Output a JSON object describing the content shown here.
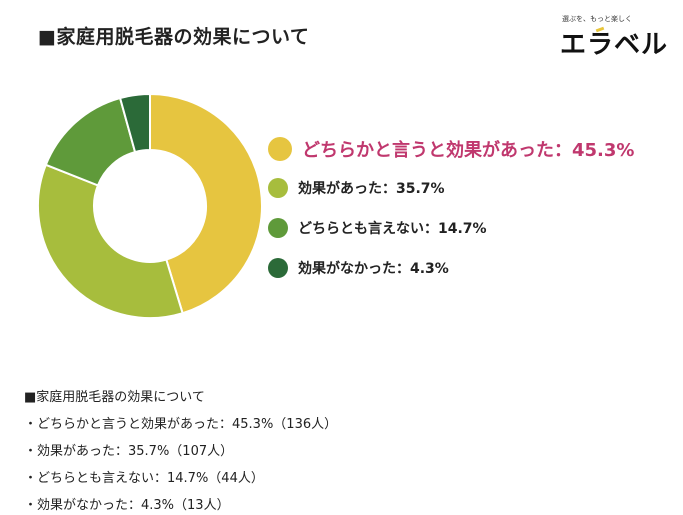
{
  "figure": {
    "title": "■家庭用脱毛器の効果について",
    "logo": {
      "tagline": "選ぶを、もっと楽しく",
      "wordmark": "エラベル"
    }
  },
  "chart_data": {
    "type": "pie",
    "variant": "donut",
    "categories": [
      "どちらかと言うと効果があった",
      "効果があった",
      "どちらとも言えない",
      "効果がなかった"
    ],
    "values": [
      45.3,
      35.7,
      14.7,
      4.3
    ],
    "counts": [
      136,
      107,
      44,
      13
    ],
    "colors": [
      "#e6c540",
      "#a7bd3d",
      "#5f9a3a",
      "#2b6a38"
    ],
    "highlight_color": "#c0386e",
    "legend": [
      "どちらかと言うと効果があった：45.3%",
      "効果があった：35.7%",
      "どちらとも言えない：14.7%",
      "効果がなかった：4.3%"
    ],
    "legend_position": "right",
    "title": "■家庭用脱毛器の効果について"
  },
  "summary": {
    "title": "■家庭用脱毛器の効果について",
    "lines": [
      "・どちらかと言うと効果があった：45.3%（136人）",
      "・効果があった：35.7%（107人）",
      "・どちらとも言えない：14.7%（44人）",
      "・効果がなかった：4.3%（13人）"
    ]
  }
}
